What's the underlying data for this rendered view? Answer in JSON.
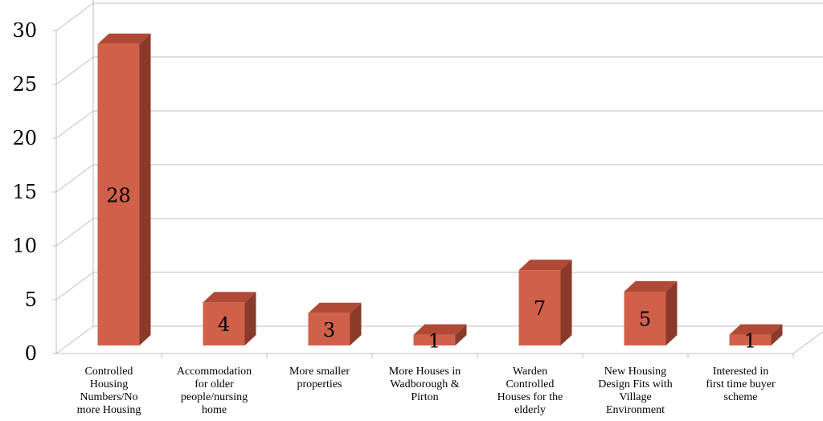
{
  "chart_data": {
    "type": "bar",
    "title": "",
    "xlabel": "",
    "ylabel": "",
    "ylim": [
      0,
      30
    ],
    "yticks": [
      0,
      5,
      10,
      15,
      20,
      25,
      30
    ],
    "grid": true,
    "legend": "none",
    "bar_color": "#d0604a",
    "bar_side_color": "#8a3a2a",
    "bar_top_color": "#b04a36",
    "categories": [
      "Controlled Housing Numbers/No more Housing",
      "Accommodation for older people/nursing home",
      "More smaller properties",
      "More Houses in Wadborough & Pirton",
      "Warden Controlled Houses for the elderly",
      "New Housing Design Fits with Village Environment",
      "Interested in first time buyer scheme"
    ],
    "category_lines": [
      [
        "Controlled",
        "Housing",
        "Numbers/No",
        "more Housing"
      ],
      [
        "Accommodation",
        "for older",
        "people/nursing",
        "home"
      ],
      [
        "More smaller",
        "properties"
      ],
      [
        "More Houses in",
        "Wadborough &",
        "Pirton"
      ],
      [
        "Warden",
        "Controlled",
        "Houses for the",
        "elderly"
      ],
      [
        "New Housing",
        "Design Fits with",
        "Village",
        "Environment"
      ],
      [
        "Interested in",
        "first time buyer",
        "scheme"
      ]
    ],
    "values": [
      28,
      4,
      3,
      1,
      7,
      5,
      1
    ],
    "data_labels": [
      "28",
      "4",
      "3",
      "1",
      "7",
      "5",
      "1"
    ]
  }
}
